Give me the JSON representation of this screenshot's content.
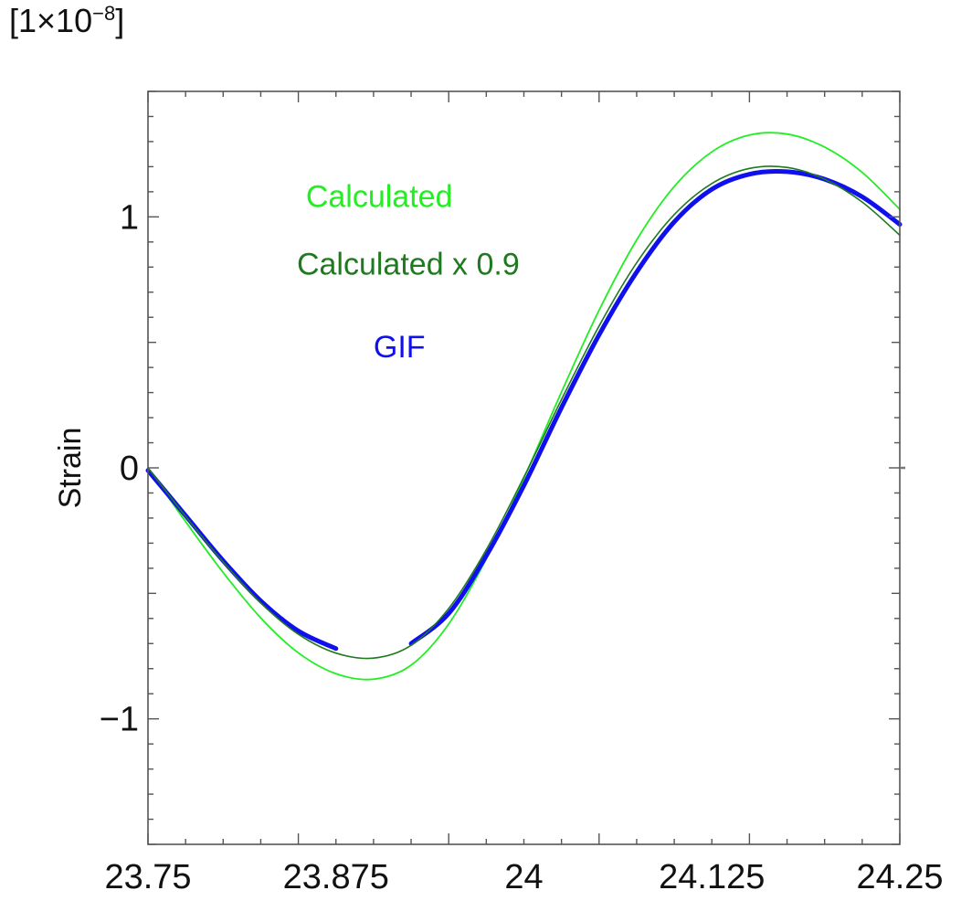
{
  "chart_data": {
    "type": "line",
    "scale_label": {
      "prefix": "[1×10",
      "exponent": "−8",
      "suffix": "]"
    },
    "xlabel": "",
    "ylabel": "Strain",
    "xlim": [
      23.75,
      24.25
    ],
    "ylim": [
      -1.5,
      1.5
    ],
    "x_ticks": [
      23.75,
      23.875,
      24,
      24.125,
      24.25
    ],
    "x_tick_labels": [
      "23.75",
      "23.875",
      "24",
      "24.125",
      "24.25"
    ],
    "y_ticks": [
      -1,
      0,
      1
    ],
    "y_tick_labels": [
      "−1",
      "0",
      "1"
    ],
    "grid": false,
    "annotations": [
      {
        "text": "Calculated",
        "color": "#22ee22",
        "x": 23.855,
        "y": 1.04
      },
      {
        "text": "Calculated x 0.9",
        "color": "#1f7a1f",
        "x": 23.849,
        "y": 0.77
      },
      {
        "text": "GIF",
        "color": "#1010ee",
        "x": 23.9,
        "y": 0.44
      }
    ],
    "series": [
      {
        "name": "Calculated",
        "color": "#22ee22",
        "x": [
          23.75,
          23.775,
          23.8,
          23.825,
          23.85,
          23.875,
          23.9,
          23.925,
          23.95,
          23.975,
          24.0,
          24.025,
          24.05,
          24.075,
          24.1,
          24.125,
          24.15,
          24.175,
          24.2,
          24.225,
          24.25
        ],
        "values": [
          0.0,
          -0.214,
          -0.417,
          -0.598,
          -0.737,
          -0.82,
          -0.842,
          -0.786,
          -0.622,
          -0.362,
          -0.041,
          0.302,
          0.628,
          0.908,
          1.121,
          1.259,
          1.326,
          1.33,
          1.278,
          1.177,
          1.03
        ]
      },
      {
        "name": "Calculated x 0.9",
        "color": "#1f7a1f",
        "x": [
          23.75,
          23.775,
          23.8,
          23.825,
          23.85,
          23.875,
          23.9,
          23.925,
          23.95,
          23.975,
          24.0,
          24.025,
          24.05,
          24.075,
          24.1,
          24.125,
          24.15,
          24.175,
          24.2,
          24.225,
          24.25
        ],
        "values": [
          0.0,
          -0.193,
          -0.375,
          -0.538,
          -0.663,
          -0.738,
          -0.758,
          -0.707,
          -0.56,
          -0.326,
          -0.037,
          0.272,
          0.565,
          0.817,
          1.009,
          1.133,
          1.193,
          1.197,
          1.15,
          1.059,
          0.927
        ]
      },
      {
        "name": "GIF",
        "color": "#1010ee",
        "x": [
          23.75,
          23.775,
          23.8,
          23.825,
          23.85,
          23.875,
          23.9,
          23.925,
          23.95,
          23.975,
          24.0,
          24.025,
          24.05,
          24.075,
          24.1,
          24.125,
          24.15,
          24.175,
          24.2,
          24.225,
          24.25
        ],
        "values": [
          -0.01,
          -0.19,
          -0.37,
          -0.53,
          -0.65,
          -0.72,
          null,
          -0.7,
          -0.58,
          -0.35,
          -0.07,
          0.24,
          0.53,
          0.78,
          0.98,
          1.11,
          1.17,
          1.18,
          1.15,
          1.08,
          0.97
        ]
      }
    ]
  }
}
